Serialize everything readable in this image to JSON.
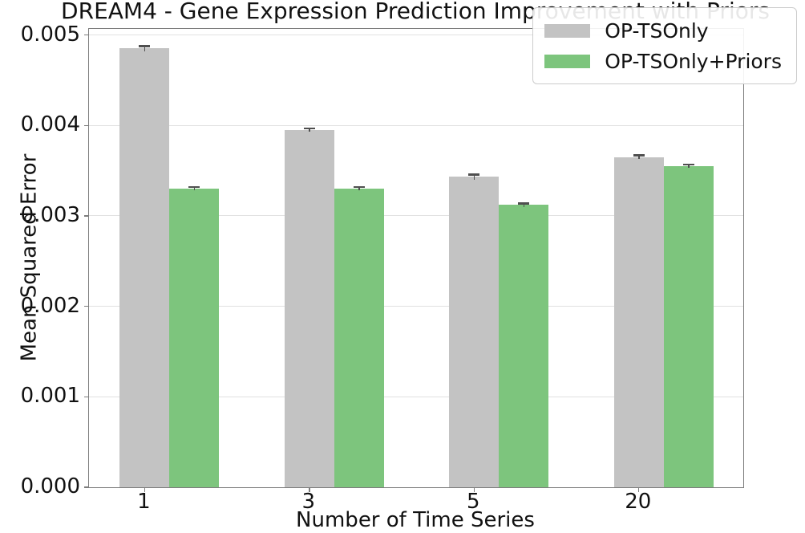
{
  "title": "DREAM4 - Gene Expression Prediction Improvement with Priors",
  "chart_data": {
    "type": "bar",
    "title": "DREAM4 - Gene Expression Prediction Improvement with Priors",
    "xlabel": "Number of Time Series",
    "ylabel": "Mean Squared Error",
    "categories": [
      "1",
      "3",
      "5",
      "20"
    ],
    "series": [
      {
        "name": "OP-TSOnly",
        "color": "#c3c3c3",
        "values": [
          0.00485,
          0.00395,
          0.00343,
          0.00365
        ],
        "errors": [
          3e-05,
          2e-05,
          3e-05,
          2e-05
        ]
      },
      {
        "name": "OP-TSOnly+Priors",
        "color": "#7dc57d",
        "values": [
          0.0033,
          0.0033,
          0.00312,
          0.00355
        ],
        "errors": [
          2e-05,
          2e-05,
          2e-05,
          2e-05
        ]
      }
    ],
    "ylim": [
      0,
      0.005067
    ],
    "yticks": [
      0,
      0.001,
      0.002,
      0.003,
      0.004,
      0.005
    ],
    "ytick_labels": [
      "0.000",
      "0.001",
      "0.002",
      "0.003",
      "0.004",
      "0.005"
    ],
    "grid": true,
    "grid_color": "#e1e1e1",
    "error_bar_color": "#4f4f4f",
    "legend_position": "upper right"
  }
}
